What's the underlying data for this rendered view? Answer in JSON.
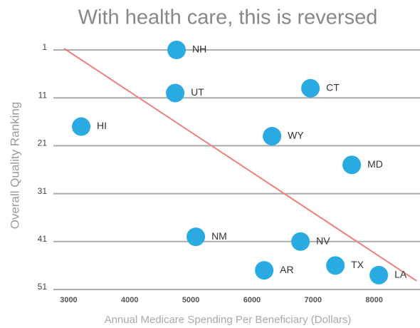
{
  "chart_data": {
    "type": "scatter",
    "title": "With health care, this is reversed",
    "x_label": "Annual Medicare Spending Per Beneficiary (Dollars)",
    "y_label": "Overall Quality Ranking",
    "labels": [
      "NH",
      "UT",
      "CT",
      "HI",
      "WY",
      "MD",
      "NM",
      "NV",
      "AR",
      "TX",
      "LA"
    ],
    "x": [
      4766,
      4743,
      6957,
      3205,
      6328,
      7633,
      5081,
      6794,
      6200,
      7365,
      8076
    ],
    "values": [
      1,
      10,
      9,
      17,
      19,
      25,
      40,
      41,
      47,
      46,
      48
    ],
    "color": "#29abe2",
    "trend_line": {
      "x": [
        2925,
        8694
      ],
      "values": [
        0.7,
        49.2
      ],
      "color": "#f08080"
    },
    "xlim": [
      2750,
      8750
    ],
    "xticks": [
      3000,
      4000,
      5000,
      6000,
      7000,
      8000
    ],
    "ylim": [
      51,
      1
    ],
    "yticks": [
      1,
      11,
      21,
      31,
      41,
      51
    ],
    "grid": true
  }
}
